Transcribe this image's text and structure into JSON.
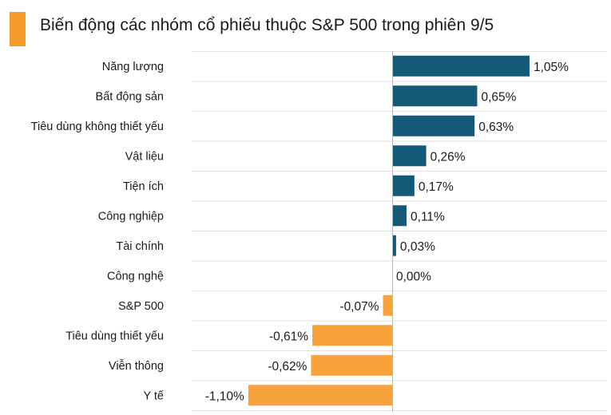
{
  "title": "Biến động các nhóm cổ phiếu thuộc S&P 500 trong phiên 9/5",
  "colors": {
    "positive": "#145a78",
    "negative": "#f7a23a",
    "accent": "#f59a2b",
    "grid": "#e2e2e2",
    "axis": "#b8b8b8"
  },
  "chart_data": {
    "type": "bar",
    "orientation": "horizontal",
    "categories": [
      "Năng lượng",
      "Bất động sản",
      "Tiêu dùng không thiết yếu",
      "Vật liệu",
      "Tiện ích",
      "Công nghiệp",
      "Tài chính",
      "Công nghệ",
      "S&P 500",
      "Tiêu dùng thiết yếu",
      "Viễn thông",
      "Y tế"
    ],
    "values": [
      1.05,
      0.65,
      0.63,
      0.26,
      0.17,
      0.11,
      0.03,
      0.0,
      -0.07,
      -0.61,
      -0.62,
      -1.1
    ],
    "value_labels": [
      "1,05%",
      "0,65%",
      "0,63%",
      "0,26%",
      "0,17%",
      "0,11%",
      "0,03%",
      "0,00%",
      "-0,07%",
      "-0,61%",
      "-0,62%",
      "-1,10%"
    ],
    "unit": "%",
    "grid": true,
    "legend": "none"
  }
}
